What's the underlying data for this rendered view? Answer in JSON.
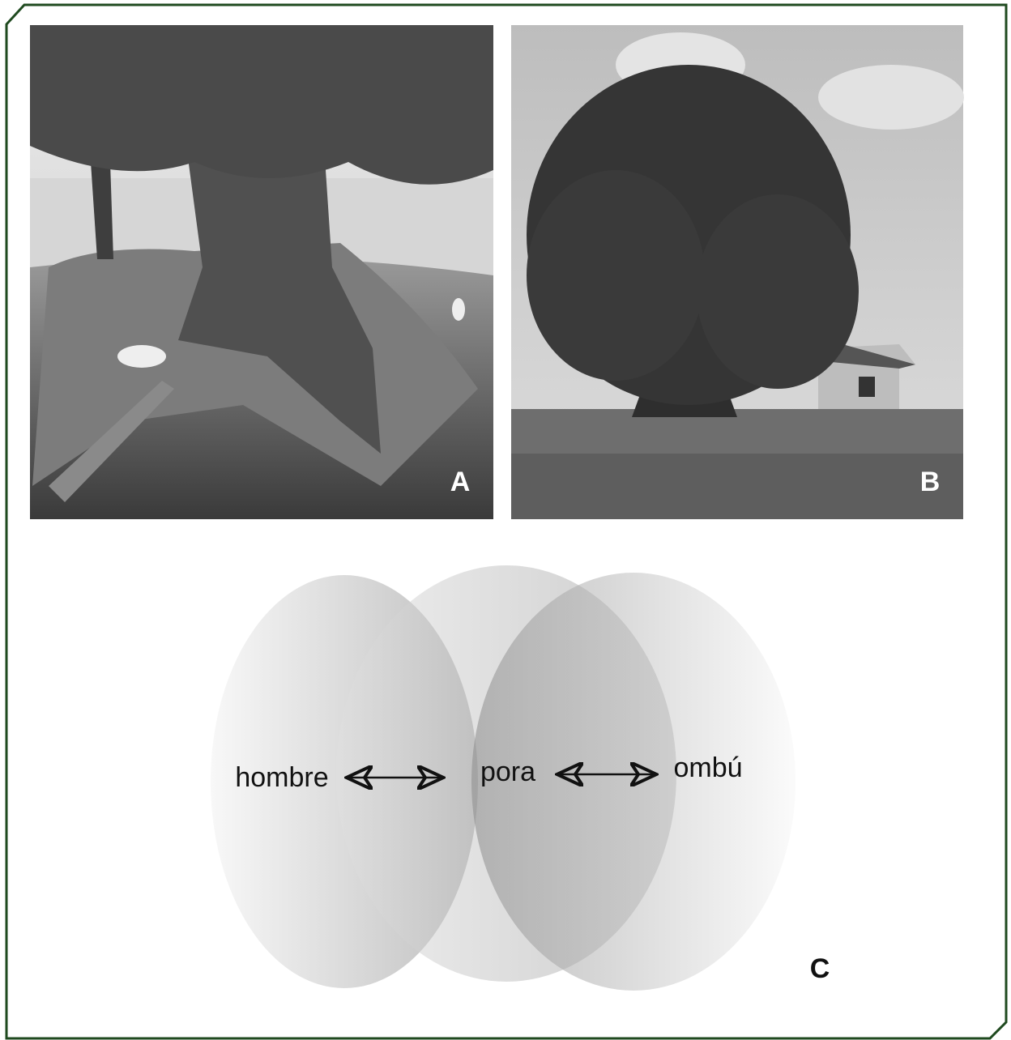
{
  "panels": [
    {
      "label": "A"
    },
    {
      "label": "B"
    }
  ],
  "diagram": {
    "label": "C",
    "terms": [
      "hombre",
      "pora",
      "ombú"
    ]
  }
}
